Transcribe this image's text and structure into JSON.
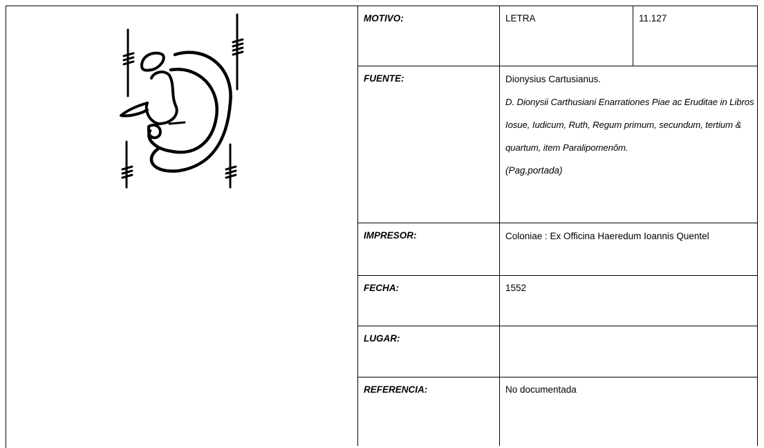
{
  "record": {
    "motivo": {
      "label": "MOTIVO:",
      "value": "LETRA",
      "number": "11.127"
    },
    "fuente": {
      "label": "FUENTE:",
      "author": "Dionysius Cartusianus.",
      "title": "D. Dionysii Carthusiani Enarrationes Piae ac Eruditae in Libros Iosue, Iudicum, Ruth, Regum primum, secundum, tertium & quartum, item Paralipomenôm.",
      "pages": "(Pag,portada)"
    },
    "impresor": {
      "label": "IMPRESOR:",
      "value": "Coloniae : Ex Officina Haeredum Ioannis Quentel"
    },
    "fecha": {
      "label": "FECHA:",
      "value": "1552"
    },
    "lugar": {
      "label": "LUGAR:"
    },
    "referencia": {
      "label": "REFERENCIA:",
      "value": "No documentada"
    }
  }
}
